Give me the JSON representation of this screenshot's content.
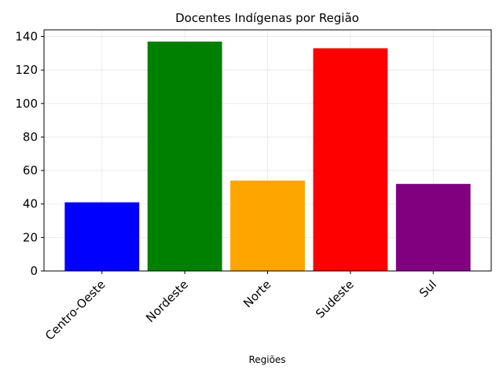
{
  "chart_data": {
    "type": "bar",
    "title": "Docentes Indígenas por Região",
    "xlabel": "Regiões",
    "ylabel": "",
    "categories": [
      "Centro-Oeste",
      "Nordeste",
      "Norte",
      "Sudeste",
      "Sul"
    ],
    "values": [
      41,
      137,
      54,
      133,
      52
    ],
    "colors": [
      "#0000ff",
      "#008000",
      "#ffa500",
      "#ff0000",
      "#800080"
    ],
    "ylim": [
      0,
      144
    ],
    "yticks": [
      0,
      20,
      40,
      60,
      80,
      100,
      120,
      140
    ],
    "grid": true,
    "legend": "none"
  }
}
